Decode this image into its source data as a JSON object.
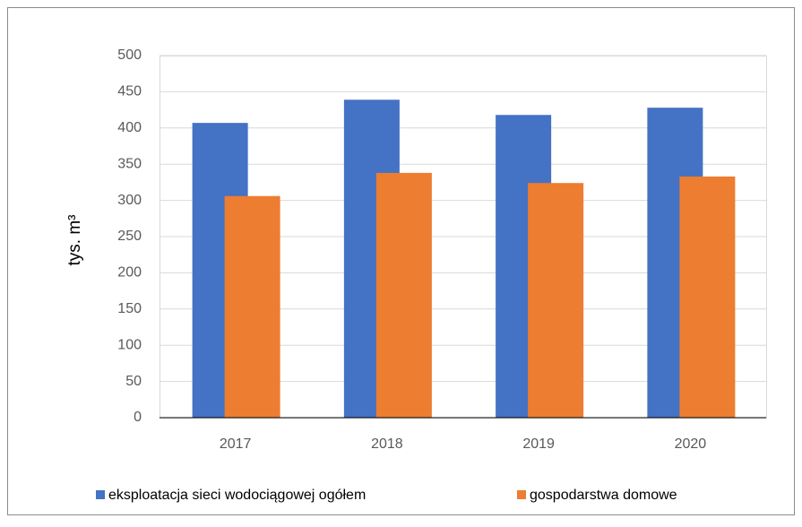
{
  "chart_data": {
    "type": "bar",
    "y_label": "tys. m³",
    "categories": [
      "2017",
      "2018",
      "2019",
      "2020"
    ],
    "series": [
      {
        "name": "eksploatacja sieci wodociągowej ogółem",
        "color": "#4472c4",
        "values": [
          407,
          439,
          418,
          428
        ]
      },
      {
        "name": "gospodarstwa domowe",
        "color": "#ed7d31",
        "values": [
          306,
          338,
          324,
          333
        ]
      }
    ],
    "ylim": [
      0,
      500
    ],
    "yticks": [
      0,
      50,
      100,
      150,
      200,
      250,
      300,
      350,
      400,
      450,
      500
    ],
    "grid": true,
    "legend": "bottom"
  }
}
